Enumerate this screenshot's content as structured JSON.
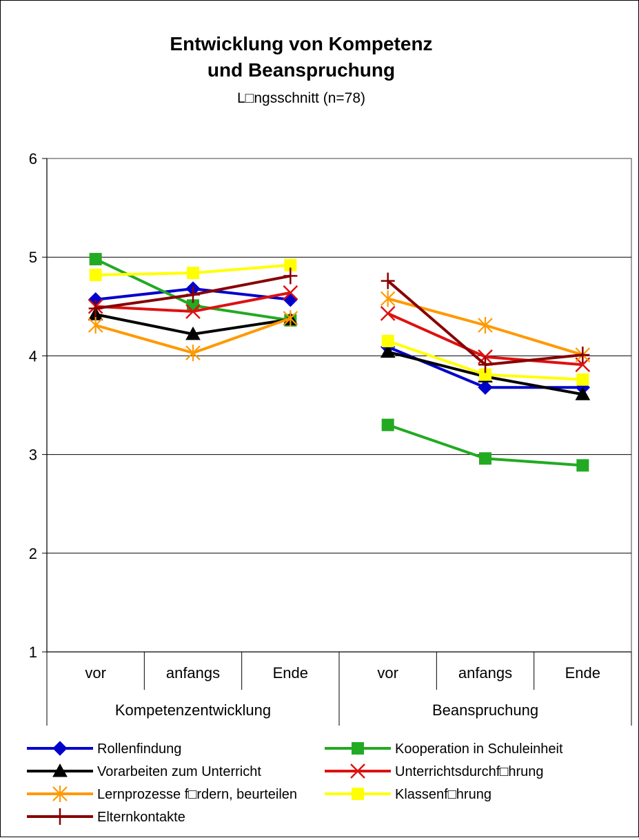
{
  "chart_data": {
    "type": "line",
    "title": "Entwicklung von Kompetenz",
    "title_line2": "und Beanspruchung",
    "subtitle": "L□ngsschnitt (n=78)",
    "ylim": [
      1,
      6
    ],
    "yticks": [
      "1",
      "2",
      "3",
      "4",
      "5",
      "6"
    ],
    "grid": true,
    "legend_position": "bottom",
    "categories": [
      "vor",
      "anfangs",
      "Ende",
      "vor",
      "anfangs",
      "Ende"
    ],
    "groups": [
      {
        "label": "Kompetenzentwicklung",
        "span": [
          0,
          2
        ]
      },
      {
        "label": "Beanspruchung",
        "span": [
          3,
          5
        ]
      }
    ],
    "series": [
      {
        "name": "Rollenfindung",
        "color": "#0000cc",
        "marker": "diamond",
        "values": [
          4.57,
          4.68,
          4.57,
          4.09,
          3.68,
          3.68
        ]
      },
      {
        "name": "Kooperation in Schuleinheit",
        "color": "#22aa22",
        "marker": "square",
        "values": [
          4.98,
          4.51,
          4.36,
          3.3,
          2.96,
          2.89
        ]
      },
      {
        "name": "Vorarbeiten zum Unterricht",
        "color": "#000000",
        "marker": "triangle",
        "values": [
          4.42,
          4.22,
          4.37,
          4.04,
          3.79,
          3.61
        ]
      },
      {
        "name": "Unterrichtsdurchf□hrung",
        "color": "#dd1111",
        "marker": "x",
        "values": [
          4.5,
          4.45,
          4.64,
          4.43,
          3.99,
          3.91
        ]
      },
      {
        "name": "Lernprozesse f□rdern, beurteilen",
        "color": "#ff9900",
        "marker": "asterisk",
        "values": [
          4.31,
          4.03,
          4.38,
          4.58,
          4.31,
          4.01
        ]
      },
      {
        "name": "Klassenf□hrung",
        "color": "#ffff00",
        "marker": "square",
        "values": [
          4.82,
          4.84,
          4.92,
          4.15,
          3.81,
          3.76
        ]
      },
      {
        "name": "Elternkontakte",
        "color": "#880000",
        "marker": "plus",
        "values": [
          4.48,
          4.62,
          4.81,
          4.76,
          3.91,
          4.01
        ]
      }
    ]
  }
}
